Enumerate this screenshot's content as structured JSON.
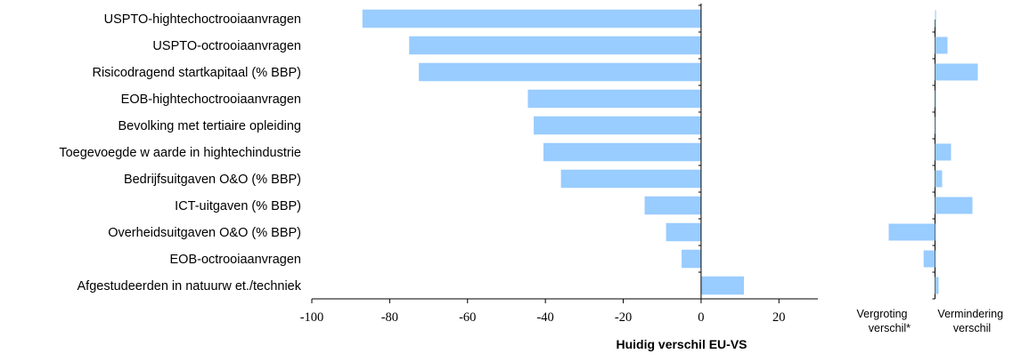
{
  "chart_data": [
    {
      "type": "bar",
      "orientation": "horizontal",
      "categories": [
        "USPTO-hightechoctrooiaanvragen",
        "USPTO-octrooiaanvragen",
        "Risicodragend startkapitaal (% BBP)",
        "EOB-hightechoctrooiaanvragen",
        "Bevolking met tertiaire opleiding",
        "Toegevoegde w aarde in hightechindustrie",
        "Bedrijfsuitgaven O&O (% BBP)",
        "ICT-uitgaven (% BBP)",
        "Overheidsuitgaven O&O (% BBP)",
        "EOB-octrooiaanvragen",
        "Afgestudeerden in natuurw et./techniek"
      ],
      "values": [
        -87,
        -75,
        -72.5,
        -44.5,
        -43,
        -40.5,
        -36,
        -14.5,
        -9,
        -5,
        11
      ],
      "xlabel": "Huidig verschil EU-VS",
      "xlim": [
        -100,
        30
      ],
      "xticks": [
        -100,
        -80,
        -60,
        -40,
        -20,
        0,
        20
      ],
      "bar_color": "#99ccff"
    },
    {
      "type": "bar",
      "orientation": "horizontal",
      "values": [
        0.3,
        3.5,
        12,
        0.3,
        0,
        4.5,
        2,
        10.5,
        -13,
        -3.2,
        1
      ],
      "xlim": [
        -15,
        15
      ],
      "labels": {
        "left": [
          "Vergroting",
          "verschil*"
        ],
        "right": [
          "Vermindering",
          "verschil"
        ]
      },
      "bar_color": "#99ccff"
    }
  ]
}
